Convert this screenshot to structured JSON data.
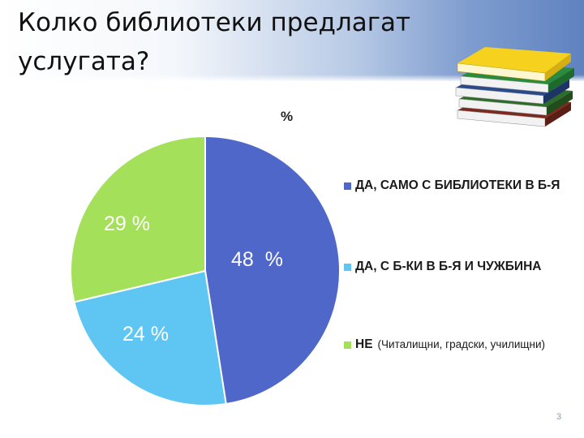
{
  "slide": {
    "title": "Колко библиотеки предлагат услугата?",
    "page_number": "3"
  },
  "chart_data": {
    "type": "pie",
    "title": "%",
    "slices": [
      {
        "label": "ДА, САМО С БИБЛИОТЕКИ В Б-Я",
        "value": 48,
        "display": "48  %",
        "color": "#4f67c9"
      },
      {
        "label": "ДА, С Б-КИ В Б-Я И ЧУЖБИНА",
        "value": 24,
        "display": "24 %",
        "color": "#5fc6f4"
      },
      {
        "label": "НЕ",
        "value": 29,
        "display": "29 %",
        "color": "#a4e05a"
      }
    ],
    "legend_note": "(Читалищни, градски, училищни)",
    "legend_placement": "right"
  },
  "decoration": {
    "icon": "books-stack-icon"
  }
}
